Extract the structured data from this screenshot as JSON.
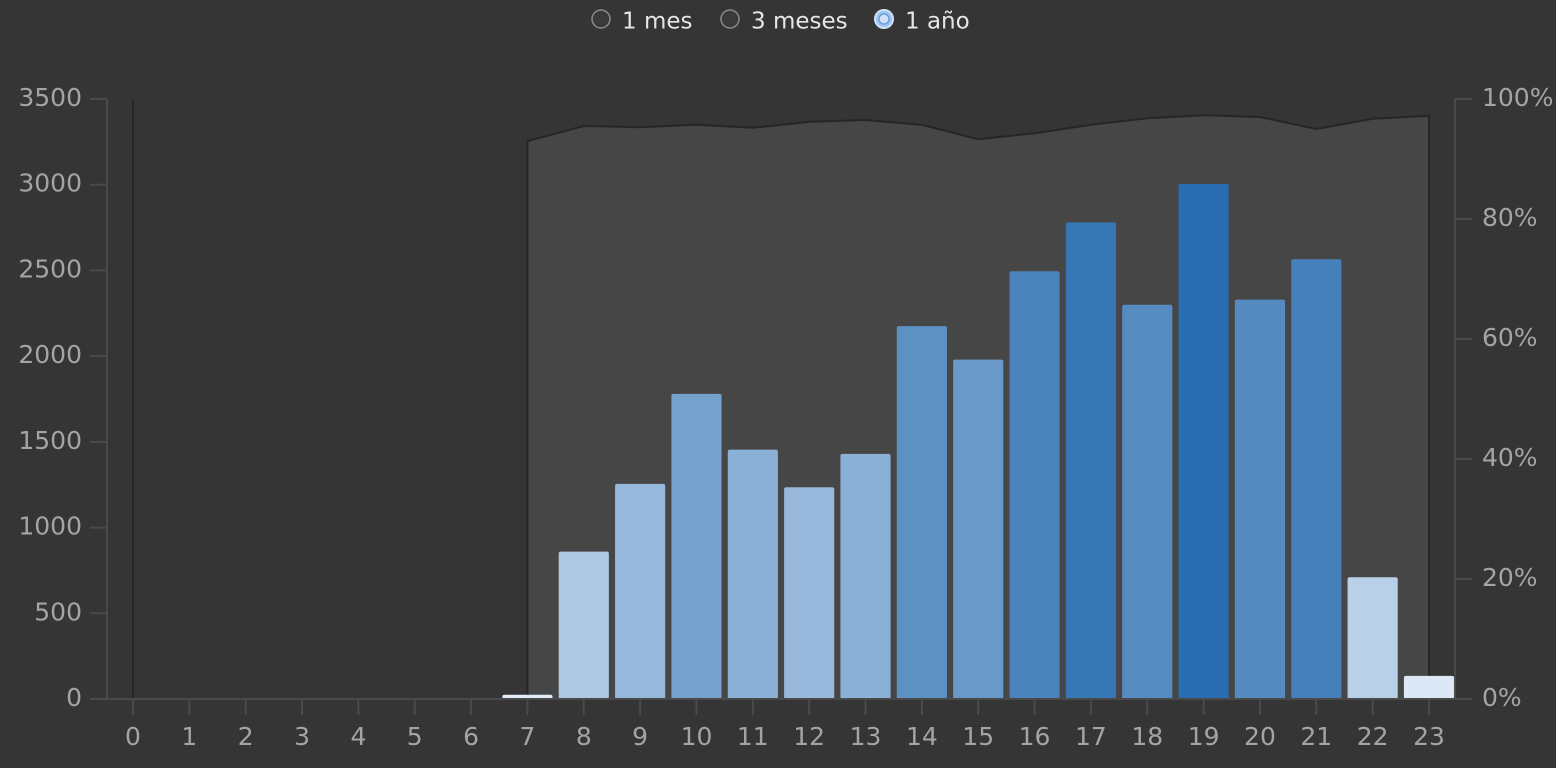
{
  "options": [
    "1 mes",
    "3 meses",
    "1 año"
  ],
  "selected_option": 2,
  "chart_data": {
    "type": "bar",
    "categories": [
      "0",
      "1",
      "2",
      "3",
      "4",
      "5",
      "6",
      "7",
      "8",
      "9",
      "10",
      "11",
      "12",
      "13",
      "14",
      "15",
      "16",
      "17",
      "18",
      "19",
      "20",
      "21",
      "22",
      "23"
    ],
    "series": [
      {
        "type": "bar",
        "color_scale": [
          "#e4eef9",
          "#2a6db0"
        ],
        "values": [
          5,
          0,
          0,
          0,
          0,
          0,
          0,
          25,
          860,
          1255,
          1780,
          1455,
          1235,
          1430,
          2175,
          1980,
          2495,
          2780,
          2300,
          3005,
          2330,
          2565,
          710,
          135
        ]
      },
      {
        "type": "area",
        "axis": "y2",
        "color": "#464646",
        "values": [
          100,
          null,
          null,
          null,
          null,
          null,
          null,
          93,
          95.5,
          95.3,
          95.7,
          95.2,
          96.2,
          96.5,
          95.7,
          93.3,
          94.3,
          95.7,
          96.8,
          97.3,
          97,
          95,
          96.7,
          97.2
        ]
      }
    ],
    "ylim": [
      0,
      3500
    ],
    "yticks": [
      0,
      500,
      1000,
      1500,
      2000,
      2500,
      3000,
      3500
    ],
    "y2lim": [
      0,
      100
    ],
    "y2ticks": [
      {
        "value": 0,
        "label": "0%"
      },
      {
        "value": 20,
        "label": "20%"
      },
      {
        "value": 40,
        "label": "40%"
      },
      {
        "value": 60,
        "label": "60%"
      },
      {
        "value": 80,
        "label": "80%"
      },
      {
        "value": 100,
        "label": "100%"
      }
    ]
  }
}
